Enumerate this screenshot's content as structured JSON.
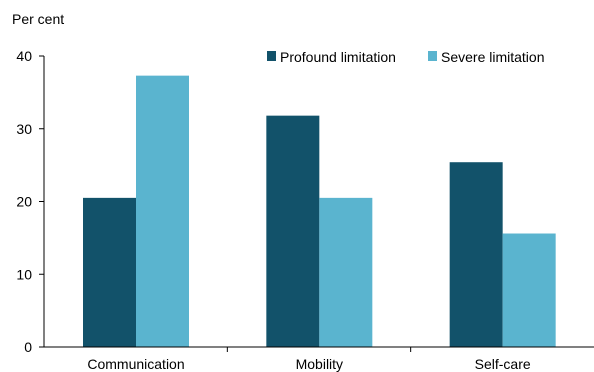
{
  "chart_data": {
    "type": "bar",
    "title": "",
    "xlabel": "",
    "ylabel": "Per cent",
    "ylim": [
      0,
      40
    ],
    "yticks": [
      0,
      10,
      20,
      30,
      40
    ],
    "categories": [
      "Communication",
      "Mobility",
      "Self-care"
    ],
    "series": [
      {
        "name": "Profound limitation",
        "color": "#12526A",
        "values": [
          20.5,
          31.8,
          25.4
        ]
      },
      {
        "name": "Severe limitation",
        "color": "#5AB4CF",
        "values": [
          37.3,
          20.5,
          15.6
        ]
      }
    ],
    "grid": false,
    "legend": "top-right"
  }
}
